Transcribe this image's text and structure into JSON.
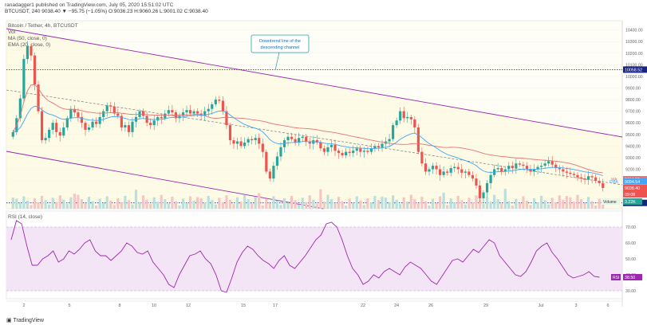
{
  "header": {
    "published": "ranadagger1 published on TradingView.com, July 05, 2020 15:51:02 UTC",
    "symbol_line": "BTCUSDT, 240  9038.40 ▼ −95.75 (−1.05%)  O:9036.23  H:9060.26  L:9001.02  C:9038.40"
  },
  "legend": {
    "title": "Bitcoin / Tether, 4h, BTCUSDT",
    "vol": "Vol",
    "ma": "MA (50, close, 0)",
    "ema": "EMA (20, close, 0)",
    "rsi": "RSI (14, close)"
  },
  "annotation": {
    "line1": "Downtrend line of the",
    "line2": "descending channel"
  },
  "badges": {
    "resistance": "10058.52",
    "ma": "9114.00",
    "ema": "9094.54",
    "last": "9038.40",
    "time": "09:08",
    "support": "8910.04",
    "volume_label": "Volume",
    "volume_value": "3.22K",
    "rsi_label": "RSI",
    "rsi_value": "38.50",
    "ma_tag": "MA",
    "ema_tag": "EMA"
  },
  "brand": "TradingView",
  "colors": {
    "up": "#26a69a",
    "down": "#ef5350",
    "ma": "#e57373",
    "ema": "#42a5f5",
    "channel": "#9c27b0",
    "rsi_line": "#9c27b0",
    "rsi_band": "#f3e5f5",
    "resistance": "#1a237e",
    "support": "#1a237e"
  },
  "chart_data": [
    {
      "type": "candlestick",
      "title": "Bitcoin / Tether, 4h, BTCUSDT",
      "x_tick_labels": [
        "2",
        "5",
        "8",
        "10",
        "12",
        "15",
        "17",
        "22",
        "24",
        "26",
        "29",
        "Jul",
        "3",
        "6"
      ],
      "y_tick_labels": [
        10400,
        10300,
        10200,
        10100,
        10000,
        9900,
        9800,
        9700,
        9600,
        9500,
        9400,
        9300,
        9200,
        9100,
        9000,
        8900
      ],
      "ylim": [
        8860,
        10480
      ],
      "horizontal_levels": [
        10058.52,
        8910.04
      ],
      "close": [
        9520,
        9640,
        9810,
        10150,
        10260,
        10180,
        9930,
        9700,
        9450,
        9470,
        9540,
        9600,
        9520,
        9490,
        9560,
        9640,
        9720,
        9690,
        9650,
        9600,
        9540,
        9560,
        9610,
        9590,
        9650,
        9700,
        9750,
        9740,
        9680,
        9660,
        9560,
        9580,
        9520,
        9610,
        9650,
        9700,
        9660,
        9600,
        9580,
        9620,
        9650,
        9640,
        9680,
        9710,
        9690,
        9640,
        9660,
        9690,
        9710,
        9680,
        9700,
        9680,
        9660,
        9700,
        9720,
        9760,
        9800,
        9790,
        9700,
        9580,
        9450,
        9420,
        9440,
        9400,
        9430,
        9460,
        9450,
        9470,
        9420,
        9350,
        9180,
        9120,
        9230,
        9310,
        9390,
        9450,
        9480,
        9460,
        9430,
        9470,
        9480,
        9440,
        9420,
        9450,
        9430,
        9380,
        9350,
        9390,
        9410,
        9360,
        9340,
        9320,
        9350,
        9340,
        9360,
        9380,
        9350,
        9360,
        9350,
        9380,
        9400,
        9390,
        9420,
        9440,
        9460,
        9580,
        9620,
        9700,
        9640,
        9650,
        9630,
        9560,
        9350,
        9250,
        9180,
        9200,
        9230,
        9200,
        9150,
        9180,
        9170,
        9210,
        9220,
        9200,
        9170,
        9180,
        9150,
        9120,
        9060,
        8950,
        9000,
        9080,
        9150,
        9200,
        9210,
        9180,
        9200,
        9230,
        9210,
        9250,
        9240,
        9230,
        9200,
        9180,
        9200,
        9220,
        9230,
        9250,
        9270,
        9240,
        9210,
        9200,
        9180,
        9170,
        9160,
        9150,
        9130,
        9120,
        9110,
        9140,
        9130,
        9100,
        9080,
        9038.4
      ],
      "series": [
        {
          "name": "MA (50, close, 0)"
        },
        {
          "name": "EMA (20, close, 0)"
        },
        {
          "name": "Vol"
        }
      ],
      "last_values": {
        "MA": 9114.0,
        "EMA": 9094.54,
        "close": 9038.4,
        "Volume": "3.22K"
      }
    },
    {
      "type": "line",
      "title": "RSI (14, close)",
      "y_tick_labels": [
        70,
        60,
        50,
        40,
        30
      ],
      "ylim": [
        25,
        80
      ],
      "band": [
        30,
        70
      ],
      "series": [
        {
          "name": "RSI (14, close)",
          "values": [
            62,
            74,
            72,
            58,
            46,
            46,
            50,
            52,
            55,
            48,
            50,
            55,
            53,
            56,
            60,
            62,
            55,
            52,
            52,
            49,
            52,
            55,
            60,
            58,
            54,
            53,
            55,
            48,
            44,
            40,
            34,
            32,
            40,
            46,
            52,
            53,
            55,
            50,
            47,
            40,
            30,
            29,
            38,
            48,
            54,
            58,
            56,
            52,
            49,
            47,
            44,
            49,
            52,
            46,
            44,
            48,
            52,
            57,
            62,
            65,
            72,
            73,
            70,
            62,
            52,
            44,
            40,
            34,
            36,
            40,
            38,
            42,
            44,
            42,
            40,
            45,
            48,
            46,
            44,
            40,
            36,
            34,
            39,
            44,
            49,
            50,
            48,
            52,
            56,
            54,
            58,
            62,
            60,
            52,
            48,
            44,
            40,
            39,
            42,
            48,
            55,
            58,
            60,
            54,
            50,
            45,
            40,
            38,
            39,
            40,
            42,
            39,
            38.5
          ]
        }
      ],
      "last_value": 38.5
    }
  ]
}
